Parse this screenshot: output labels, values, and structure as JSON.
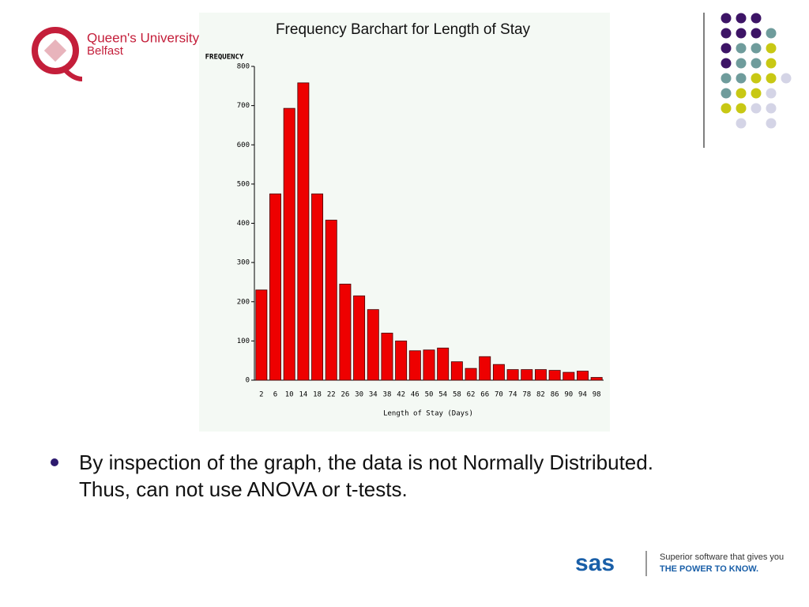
{
  "logo": {
    "name": "Queen's University",
    "place": "Belfast"
  },
  "chart_data": {
    "type": "bar",
    "title": "Frequency Barchart for Length of Stay",
    "y_label": "FREQUENCY",
    "x_label": "Length of Stay (Days)",
    "categories": [
      "2",
      "6",
      "10",
      "14",
      "18",
      "22",
      "26",
      "30",
      "34",
      "38",
      "42",
      "46",
      "50",
      "54",
      "58",
      "62",
      "66",
      "70",
      "74",
      "78",
      "82",
      "86",
      "90",
      "94",
      "98"
    ],
    "values": [
      230,
      475,
      693,
      758,
      475,
      408,
      245,
      215,
      180,
      120,
      100,
      75,
      77,
      82,
      47,
      30,
      60,
      40,
      27,
      27,
      27,
      25,
      20,
      23,
      7
    ],
    "color": "#ee0000",
    "ylim": [
      0,
      800
    ],
    "yticks": [
      0,
      100,
      200,
      300,
      400,
      500,
      600,
      700,
      800
    ],
    "grid": false
  },
  "bullet": "By inspection of the graph, the data is not Normally Distributed. Thus, can not use ANOVA or t-tests.",
  "footer": {
    "brand": "sas",
    "tagline": "Superior software that gives you",
    "slogan": "THE POWER TO KNOW."
  }
}
